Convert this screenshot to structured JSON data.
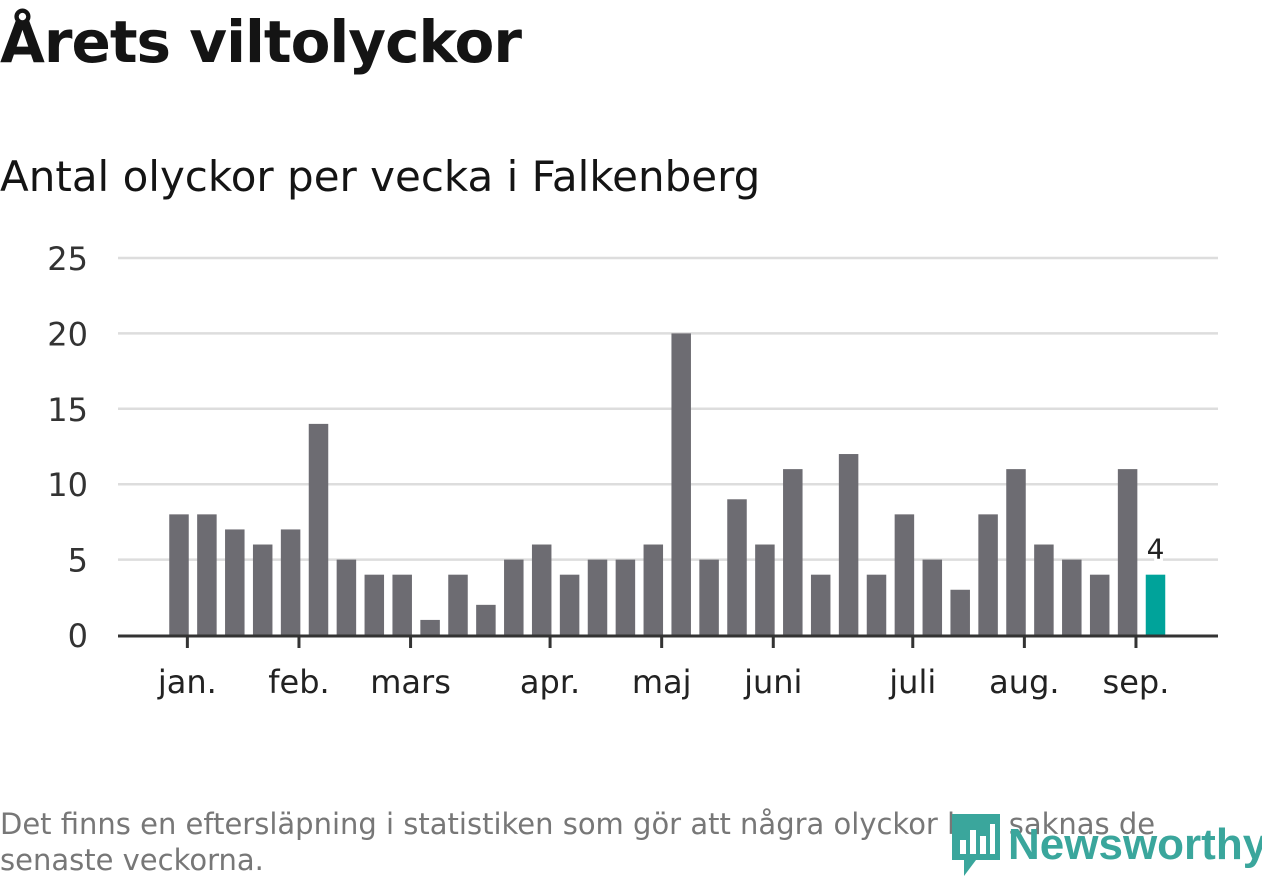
{
  "title": "Årets viltolyckor",
  "subtitle": "Antal olyckor per vecka i Falkenberg",
  "footnote": "Det finns en eftersläpning i statistiken som gör att några olyckor kan saknas de senaste veckorna.",
  "logo_text": "Newsworthy",
  "colors": {
    "bar": "#6d6c72",
    "highlight": "#00a39a",
    "grid": "#dddddd",
    "axis": "#333333",
    "logo": "#3aa69c"
  },
  "chart_data": {
    "type": "bar",
    "title": "Antal olyckor per vecka i Falkenberg",
    "xlabel": "",
    "ylabel": "",
    "ylim": [
      0,
      25
    ],
    "yticks": [
      0,
      5,
      10,
      15,
      20,
      25
    ],
    "grid": true,
    "values": [
      8,
      8,
      7,
      6,
      7,
      14,
      5,
      4,
      4,
      1,
      4,
      2,
      5,
      6,
      4,
      5,
      5,
      6,
      20,
      5,
      9,
      6,
      11,
      4,
      12,
      4,
      8,
      5,
      3,
      8,
      11,
      6,
      5,
      4,
      11,
      4
    ],
    "highlight_index": 35,
    "highlight_label": "4",
    "month_labels": [
      {
        "label": "jan.",
        "week_index": 0.3
      },
      {
        "label": "feb.",
        "week_index": 4.3
      },
      {
        "label": "mars",
        "week_index": 8.3
      },
      {
        "label": "apr.",
        "week_index": 13.3
      },
      {
        "label": "maj",
        "week_index": 17.3
      },
      {
        "label": "juni",
        "week_index": 21.3
      },
      {
        "label": "juli",
        "week_index": 26.3
      },
      {
        "label": "aug.",
        "week_index": 30.3
      },
      {
        "label": "sep.",
        "week_index": 34.3
      }
    ]
  }
}
